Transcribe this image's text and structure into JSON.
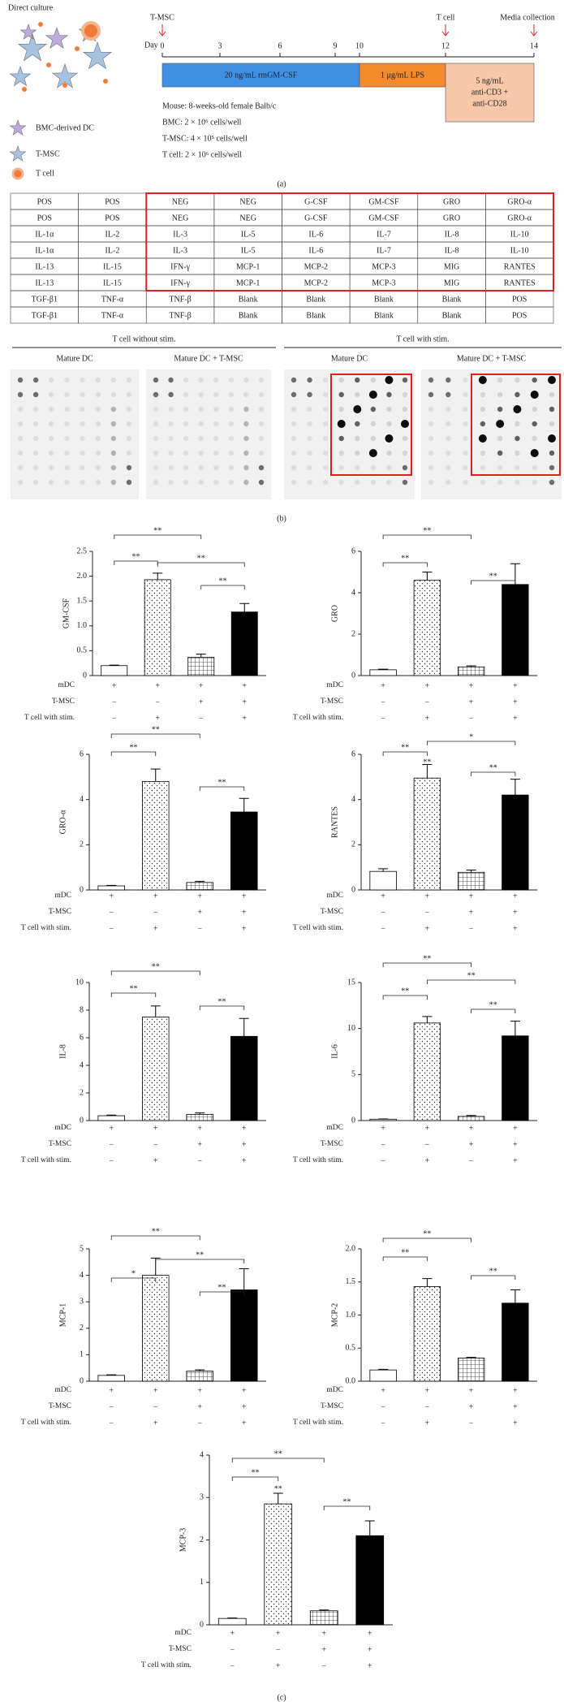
{
  "figure_a": {
    "title": "Direct culture",
    "legend": [
      "BMC-derived DC",
      "T-MSC",
      "T cell"
    ],
    "timeline": {
      "day_label": "Day",
      "days": [
        0,
        3,
        6,
        9,
        10,
        12,
        14
      ],
      "markers": [
        "T-MSC",
        "T cell",
        "Media collection"
      ],
      "phases": [
        [
          "20 ng/mL rmGM-CSF"
        ],
        [
          "1 μg/mL LPS"
        ],
        [
          "5 ng/mL",
          "anti-CD3 +",
          "anti-CD28"
        ]
      ]
    },
    "notes": [
      "Mouse: 8-weeks-old female Balb/c",
      "BMC: 2 × 10⁶ cells/well",
      "T-MSC: 4 × 10⁵ cells/well",
      "T cell: 2 × 10⁶ cells/well"
    ],
    "caption": "(a)"
  },
  "figure_b": {
    "table": {
      "rows": [
        [
          "POS",
          "POS",
          "NEG",
          "NEG",
          "G-CSF",
          "GM-CSF",
          "GRO",
          "GRO-α"
        ],
        [
          "POS",
          "POS",
          "NEG",
          "NEG",
          "G-CSF",
          "GM-CSF",
          "GRO",
          "GRO-α"
        ],
        [
          "IL-1α",
          "IL-2",
          "IL-3",
          "IL-5",
          "IL-6",
          "IL-7",
          "IL-8",
          "IL-10"
        ],
        [
          "IL-1α",
          "IL-2",
          "IL-3",
          "IL-5",
          "IL-6",
          "IL-7",
          "IL-8",
          "IL-10"
        ],
        [
          "IL-13",
          "IL-15",
          "IFN-γ",
          "MCP-1",
          "MCP-2",
          "MCP-3",
          "MIG",
          "RANTES"
        ],
        [
          "IL-13",
          "IL-15",
          "IFN-γ",
          "MCP-1",
          "MCP-2",
          "MCP-3",
          "MIG",
          "RANTES"
        ],
        [
          "TGF-β1",
          "TNF-α",
          "TNF-β",
          "Blank",
          "Blank",
          "Blank",
          "Blank",
          "POS"
        ],
        [
          "TGF-β1",
          "TNF-α",
          "TNF-β",
          "Blank",
          "Blank",
          "Blank",
          "Blank",
          "POS"
        ]
      ]
    },
    "groups": [
      "T cell without stim.",
      "T cell with stim."
    ],
    "panels": [
      "Mature DC",
      "Mature DC + T-MSC",
      "Mature DC",
      "Mature DC + T-MSC"
    ],
    "caption": "(b)"
  },
  "chart_data": [
    {
      "type": "bar",
      "ylabel": "GM-CSF",
      "values": [
        0.2,
        1.93,
        0.37,
        1.28
      ],
      "errors": [
        0.01,
        0.13,
        0.06,
        0.17
      ],
      "ylim": [
        0,
        2.5
      ],
      "yticks": [
        0,
        0.5,
        {
          "value": 1,
          "label": "1.0"
        },
        1.5,
        {
          "value": 2,
          "label": "2.0"
        },
        2.5
      ],
      "conditions": [
        {
          "name": "mDC",
          "values": [
            "+",
            "+",
            "+",
            "+"
          ]
        },
        {
          "name": "T-MSC",
          "values": [
            "−",
            "−",
            "+",
            "+"
          ]
        },
        {
          "name": "T cell with stim.",
          "values": [
            "−",
            "+",
            "−",
            "+"
          ]
        }
      ],
      "annotations": [
        "**",
        "**",
        "**",
        "**"
      ]
    },
    {
      "type": "bar",
      "ylabel": "GRO",
      "values": [
        0.28,
        4.6,
        0.42,
        4.4
      ],
      "errors": [
        0.03,
        0.4,
        0.05,
        1.0
      ],
      "ylim": [
        0,
        6
      ],
      "yticks": [
        0,
        2,
        4,
        6
      ],
      "conditions": [
        {
          "name": "mDC",
          "values": [
            "+",
            "+",
            "+",
            "+"
          ]
        },
        {
          "name": "T-MSC",
          "values": [
            "−",
            "−",
            "+",
            "+"
          ]
        },
        {
          "name": "T cell with stim.",
          "values": [
            "−",
            "+",
            "−",
            "+"
          ]
        }
      ],
      "annotations": [
        "**",
        "**",
        "**"
      ]
    },
    {
      "type": "bar",
      "ylabel": "GRO-α",
      "values": [
        0.18,
        4.8,
        0.33,
        3.45
      ],
      "errors": [
        0.02,
        0.55,
        0.05,
        0.6
      ],
      "ylim": [
        0,
        6
      ],
      "yticks": [
        0,
        2,
        4,
        6
      ],
      "conditions": [
        {
          "name": "mDC",
          "values": [
            "+",
            "+",
            "+",
            "+"
          ]
        },
        {
          "name": "T-MSC",
          "values": [
            "−",
            "−",
            "+",
            "+"
          ]
        },
        {
          "name": "T cell with stim.",
          "values": [
            "−",
            "+",
            "−",
            "+"
          ]
        }
      ],
      "annotations": [
        "**",
        "**",
        "**"
      ]
    },
    {
      "type": "bar",
      "ylabel": "RANTES",
      "values": [
        0.82,
        4.95,
        0.78,
        4.2
      ],
      "errors": [
        0.12,
        0.6,
        0.1,
        0.7
      ],
      "ylim": [
        0,
        6
      ],
      "yticks": [
        0,
        2,
        4,
        6
      ],
      "conditions": [
        {
          "name": "mDC",
          "values": [
            "+",
            "+",
            "+",
            "+"
          ]
        },
        {
          "name": "T-MSC",
          "values": [
            "−",
            "−",
            "+",
            "+"
          ]
        },
        {
          "name": "T cell with stim.",
          "values": [
            "−",
            "+",
            "−",
            "+"
          ]
        }
      ],
      "annotations": [
        "**",
        "*",
        "**",
        "**"
      ]
    },
    {
      "type": "bar",
      "ylabel": "IL-8",
      "values": [
        0.35,
        7.5,
        0.45,
        6.1
      ],
      "errors": [
        0.05,
        0.8,
        0.1,
        1.3
      ],
      "ylim": [
        0,
        10
      ],
      "yticks": [
        0,
        2,
        4,
        6,
        8,
        10
      ],
      "conditions": [
        {
          "name": "mDC",
          "values": [
            "+",
            "+",
            "+",
            "+"
          ]
        },
        {
          "name": "T-MSC",
          "values": [
            "−",
            "−",
            "+",
            "+"
          ]
        },
        {
          "name": "T cell with stim.",
          "values": [
            "−",
            "+",
            "−",
            "+"
          ]
        }
      ],
      "annotations": [
        "**",
        "**",
        "**"
      ]
    },
    {
      "type": "bar",
      "ylabel": "IL-6",
      "values": [
        0.15,
        10.6,
        0.45,
        9.2
      ],
      "errors": [
        0.03,
        0.7,
        0.1,
        1.6
      ],
      "ylim": [
        0,
        15
      ],
      "yticks": [
        0,
        5,
        10,
        15
      ],
      "conditions": [
        {
          "name": "mDC",
          "values": [
            "+",
            "+",
            "+",
            "+"
          ]
        },
        {
          "name": "T-MSC",
          "values": [
            "−",
            "−",
            "+",
            "+"
          ]
        },
        {
          "name": "T cell with stim.",
          "values": [
            "−",
            "+",
            "−",
            "+"
          ]
        }
      ],
      "annotations": [
        "**",
        "**",
        "**",
        "**"
      ]
    },
    {
      "type": "bar",
      "ylabel": "MCP-1",
      "values": [
        0.22,
        4.0,
        0.38,
        3.45
      ],
      "errors": [
        0.02,
        0.65,
        0.05,
        0.8
      ],
      "ylim": [
        0,
        5
      ],
      "yticks": [
        0,
        1,
        2,
        3,
        4,
        5
      ],
      "conditions": [
        {
          "name": "mDC",
          "values": [
            "+",
            "+",
            "+",
            "+"
          ]
        },
        {
          "name": "T-MSC",
          "values": [
            "−",
            "−",
            "+",
            "+"
          ]
        },
        {
          "name": "T cell with stim.",
          "values": [
            "−",
            "+",
            "−",
            "+"
          ]
        }
      ],
      "annotations": [
        "**",
        "*",
        "**",
        "**"
      ]
    },
    {
      "type": "bar",
      "ylabel": "MCP-2",
      "values": [
        0.17,
        1.43,
        0.35,
        1.18
      ],
      "errors": [
        0.01,
        0.12,
        0.01,
        0.2
      ],
      "ylim": [
        0,
        2
      ],
      "yticks": [
        {
          "value": 0,
          "label": "0.0"
        },
        0.5,
        {
          "value": 1,
          "label": "1.0"
        },
        1.5,
        {
          "value": 2,
          "label": "2.0"
        }
      ],
      "conditions": [
        {
          "name": "mDC",
          "values": [
            "+",
            "+",
            "+",
            "+"
          ]
        },
        {
          "name": "T-MSC",
          "values": [
            "−",
            "−",
            "+",
            "+"
          ]
        },
        {
          "name": "T cell with stim.",
          "values": [
            "−",
            "+",
            "−",
            "+"
          ]
        }
      ],
      "annotations": [
        "**",
        "**",
        "**"
      ]
    },
    {
      "type": "bar",
      "ylabel": "MCP-3",
      "values": [
        0.15,
        2.85,
        0.33,
        2.1
      ],
      "errors": [
        0.01,
        0.25,
        0.02,
        0.35
      ],
      "ylim": [
        0,
        4
      ],
      "yticks": [
        0,
        1,
        2,
        3,
        4
      ],
      "conditions": [
        {
          "name": "mDC",
          "values": [
            "+",
            "+",
            "+",
            "+"
          ]
        },
        {
          "name": "T-MSC",
          "values": [
            "−",
            "−",
            "+",
            "+"
          ]
        },
        {
          "name": "T cell with stim.",
          "values": [
            "−",
            "+",
            "−",
            "+"
          ]
        }
      ],
      "annotations": [
        "**",
        "**",
        "**",
        "**"
      ]
    }
  ],
  "caption_c": "(c)"
}
